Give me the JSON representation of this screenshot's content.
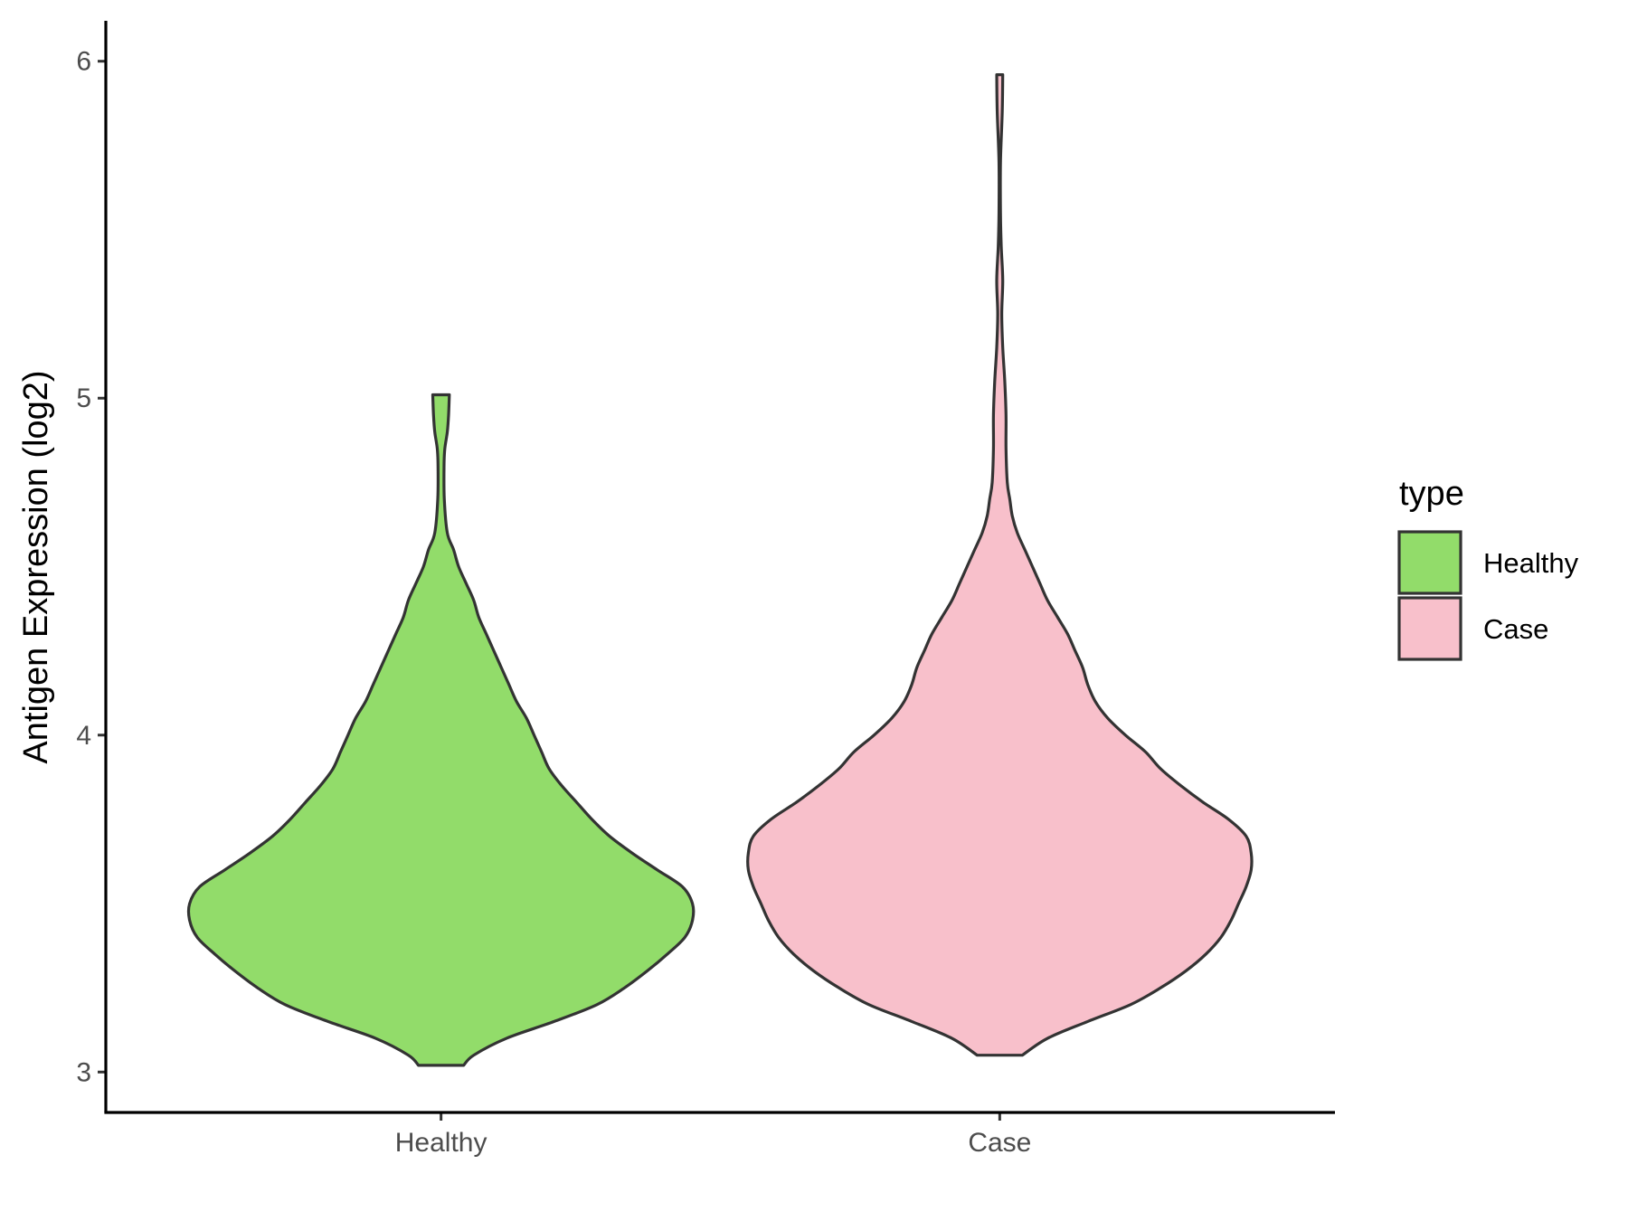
{
  "chart_data": {
    "type": "violin",
    "title": "",
    "xlabel": "",
    "ylabel": "Antigen Expression (log2)",
    "ylim": [
      2.88,
      6.12
    ],
    "yticks": [
      3,
      4,
      5,
      6
    ],
    "grid": false,
    "categories": [
      "Healthy",
      "Case"
    ],
    "legend": {
      "title": "type",
      "position": "right",
      "entries": [
        {
          "label": "Healthy",
          "color": "#92DC6A"
        },
        {
          "label": "Case",
          "color": "#F8C0CB"
        }
      ]
    },
    "series": [
      {
        "name": "Healthy",
        "color": "#92DC6A",
        "min": 3.02,
        "max": 5.01,
        "density_profile": [
          [
            3.02,
            0.09
          ],
          [
            3.05,
            0.13
          ],
          [
            3.1,
            0.26
          ],
          [
            3.15,
            0.45
          ],
          [
            3.2,
            0.62
          ],
          [
            3.25,
            0.73
          ],
          [
            3.3,
            0.82
          ],
          [
            3.35,
            0.9
          ],
          [
            3.4,
            0.97
          ],
          [
            3.45,
            1.0
          ],
          [
            3.5,
            1.0
          ],
          [
            3.55,
            0.96
          ],
          [
            3.6,
            0.86
          ],
          [
            3.65,
            0.76
          ],
          [
            3.7,
            0.67
          ],
          [
            3.75,
            0.6
          ],
          [
            3.8,
            0.54
          ],
          [
            3.85,
            0.48
          ],
          [
            3.9,
            0.43
          ],
          [
            3.95,
            0.4
          ],
          [
            4.0,
            0.37
          ],
          [
            4.05,
            0.34
          ],
          [
            4.1,
            0.3
          ],
          [
            4.15,
            0.27
          ],
          [
            4.2,
            0.24
          ],
          [
            4.25,
            0.21
          ],
          [
            4.3,
            0.18
          ],
          [
            4.35,
            0.15
          ],
          [
            4.4,
            0.13
          ],
          [
            4.45,
            0.1
          ],
          [
            4.5,
            0.07
          ],
          [
            4.55,
            0.05
          ],
          [
            4.6,
            0.025
          ],
          [
            4.7,
            0.013
          ],
          [
            4.8,
            0.012
          ],
          [
            4.85,
            0.015
          ],
          [
            4.9,
            0.025
          ],
          [
            4.95,
            0.03
          ],
          [
            5.01,
            0.033
          ]
        ]
      },
      {
        "name": "Case",
        "color": "#F8C0CB",
        "min": 3.05,
        "max": 5.96,
        "density_profile": [
          [
            3.05,
            0.09
          ],
          [
            3.1,
            0.19
          ],
          [
            3.15,
            0.35
          ],
          [
            3.2,
            0.52
          ],
          [
            3.25,
            0.64
          ],
          [
            3.3,
            0.74
          ],
          [
            3.35,
            0.82
          ],
          [
            3.4,
            0.88
          ],
          [
            3.45,
            0.92
          ],
          [
            3.5,
            0.95
          ],
          [
            3.55,
            0.98
          ],
          [
            3.6,
            1.0
          ],
          [
            3.65,
            1.0
          ],
          [
            3.7,
            0.98
          ],
          [
            3.75,
            0.91
          ],
          [
            3.8,
            0.81
          ],
          [
            3.85,
            0.72
          ],
          [
            3.9,
            0.64
          ],
          [
            3.95,
            0.58
          ],
          [
            4.0,
            0.5
          ],
          [
            4.05,
            0.43
          ],
          [
            4.1,
            0.38
          ],
          [
            4.15,
            0.35
          ],
          [
            4.2,
            0.33
          ],
          [
            4.25,
            0.3
          ],
          [
            4.3,
            0.27
          ],
          [
            4.35,
            0.23
          ],
          [
            4.4,
            0.19
          ],
          [
            4.45,
            0.16
          ],
          [
            4.5,
            0.13
          ],
          [
            4.55,
            0.1
          ],
          [
            4.6,
            0.07
          ],
          [
            4.65,
            0.05
          ],
          [
            4.7,
            0.04
          ],
          [
            4.75,
            0.03
          ],
          [
            4.85,
            0.025
          ],
          [
            4.95,
            0.025
          ],
          [
            5.05,
            0.02
          ],
          [
            5.15,
            0.012
          ],
          [
            5.25,
            0.008
          ],
          [
            5.35,
            0.012
          ],
          [
            5.45,
            0.006
          ],
          [
            5.55,
            0.003
          ],
          [
            5.7,
            0.003
          ],
          [
            5.85,
            0.01
          ],
          [
            5.96,
            0.012
          ]
        ]
      }
    ]
  }
}
